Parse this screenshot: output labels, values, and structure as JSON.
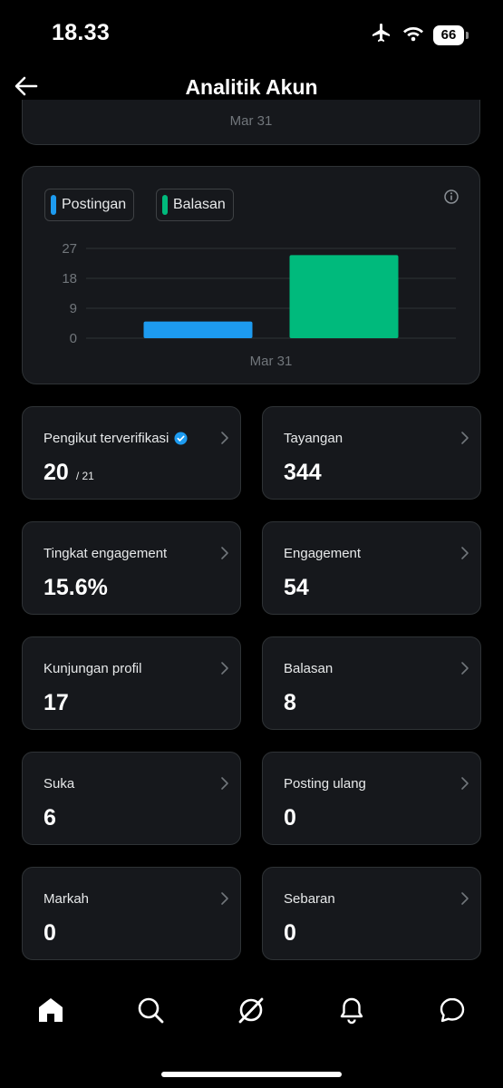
{
  "status": {
    "time": "18.33",
    "battery": "66",
    "icons": [
      "airplane-icon",
      "wifi-icon",
      "battery-icon"
    ]
  },
  "header": {
    "title": "Analitik Akun",
    "back_icon": "arrow-left-icon"
  },
  "top_card": {
    "label": "Mar 31"
  },
  "chart_data": {
    "type": "bar",
    "categories": [
      "Mar 31"
    ],
    "series": [
      {
        "name": "Postingan",
        "values": [
          5
        ],
        "color": "#1d9bf0"
      },
      {
        "name": "Balasan",
        "values": [
          25
        ],
        "color": "#00ba7c"
      }
    ],
    "yticks": [
      0,
      9,
      18,
      27
    ],
    "ylim": [
      0,
      27
    ],
    "grid": true,
    "legend_position": "top-left"
  },
  "metrics": [
    {
      "label": "Pengikut terverifikasi",
      "value": "20",
      "sub": "/ 21",
      "verified": true
    },
    {
      "label": "Tayangan",
      "value": "344"
    },
    {
      "label": "Tingkat engagement",
      "value": "15.6%"
    },
    {
      "label": "Engagement",
      "value": "54"
    },
    {
      "label": "Kunjungan profil",
      "value": "17"
    },
    {
      "label": "Balasan",
      "value": "8"
    },
    {
      "label": "Suka",
      "value": "6"
    },
    {
      "label": "Posting ulang",
      "value": "0"
    },
    {
      "label": "Markah",
      "value": "0"
    },
    {
      "label": "Sebaran",
      "value": "0"
    }
  ],
  "nav": [
    "home-icon",
    "search-icon",
    "grok-icon",
    "bell-icon",
    "messages-icon"
  ],
  "colors": {
    "background": "#000000",
    "card": "#16181c",
    "border": "#2f3336",
    "muted": "#71767b",
    "verified": "#1d9bf0"
  }
}
